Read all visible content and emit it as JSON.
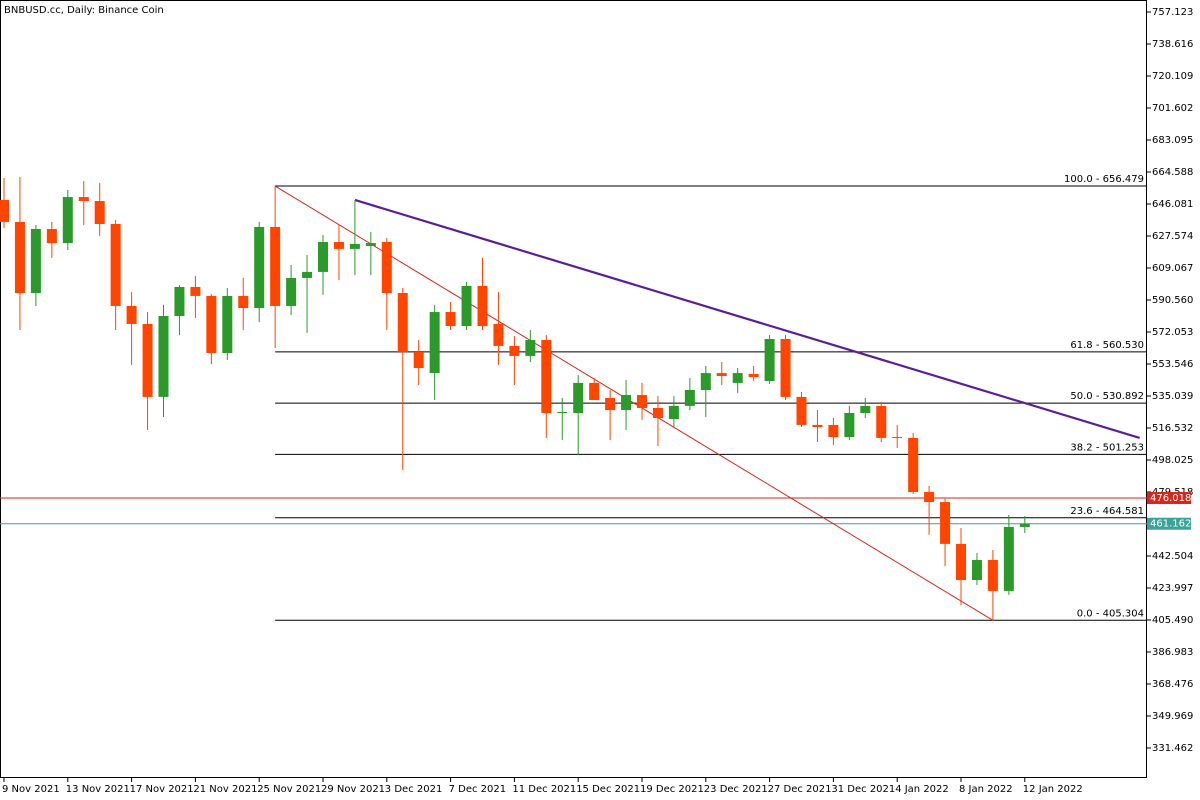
{
  "chart_data": {
    "type": "candlestick",
    "title": "BNBUSD.cc, Daily:  Binance Coin",
    "categories": [
      "9 Nov 2021",
      null,
      null,
      null,
      "13 Nov 2021",
      null,
      null,
      null,
      "17 Nov 2021",
      null,
      null,
      null,
      "21 Nov 2021",
      null,
      null,
      null,
      "25 Nov 2021",
      null,
      null,
      null,
      "29 Nov 2021",
      null,
      null,
      null,
      "3 Dec 2021",
      null,
      null,
      null,
      "7 Dec 2021",
      null,
      null,
      null,
      "11 Dec 2021",
      null,
      null,
      null,
      "15 Dec 2021",
      null,
      null,
      null,
      "19 Dec 2021",
      null,
      null,
      null,
      "23 Dec 2021",
      null,
      null,
      null,
      "27 Dec 2021",
      null,
      null,
      null,
      "31 Dec 2021",
      null,
      null,
      null,
      "4 Jan 2022",
      null,
      null,
      null,
      "8 Jan 2022",
      null,
      null,
      null,
      "12 Jan 2022"
    ],
    "open": [
      648.4,
      635.7,
      594.6,
      631.6,
      623.5,
      650.1,
      647.8,
      634.5,
      587.1,
      576.7,
      534.5,
      581.3,
      598.1,
      592.9,
      559.9,
      592.9,
      585.9,
      632.8,
      587.1,
      603.3,
      606.8,
      624.1,
      620.1,
      621.8,
      624.1,
      594.6,
      560.5,
      548.3,
      583.6,
      575.5,
      598.7,
      576.7,
      564.0,
      558.2,
      567.4,
      525.2,
      525.2,
      542.6,
      533.9,
      526.9,
      535.6,
      528.1,
      521.7,
      529.3,
      538.5,
      548.3,
      542.6,
      547.8,
      543.7,
      568.0,
      534.5,
      518.3,
      518.3,
      511.3,
      525.2,
      529.3,
      511.3,
      510.8,
      479.5,
      473.7,
      449.5,
      428.6,
      440.2,
      422.3,
      459.3
    ],
    "high": [
      661.1,
      661.7,
      633.9,
      635.7,
      654.2,
      659.4,
      658.2,
      636.8,
      595.2,
      583.6,
      587.7,
      599.2,
      604.4,
      594.0,
      597.5,
      603.3,
      635.7,
      656.479,
      610.8,
      616.6,
      628.2,
      633.9,
      648.4,
      629.9,
      626.4,
      597.5,
      567.4,
      587.7,
      589.4,
      601.0,
      614.9,
      595.2,
      569.7,
      573.2,
      570.3,
      533.9,
      547.2,
      545.5,
      538.5,
      544.3,
      542.6,
      535.0,
      535.0,
      545.5,
      552.4,
      554.7,
      551.2,
      552.4,
      570.3,
      570.3,
      537.4,
      526.9,
      522.3,
      529.3,
      533.9,
      531.6,
      518.3,
      513.6,
      483.0,
      476.1,
      458.7,
      444.2,
      446.0,
      466.2,
      465.6
    ],
    "low": [
      632.2,
      573.2,
      587.1,
      614.9,
      619.5,
      633.9,
      627.6,
      573.2,
      553.0,
      515.4,
      522.9,
      570.3,
      580.2,
      553.5,
      555.9,
      573.2,
      577.8,
      562.8,
      581.9,
      571.5,
      593.5,
      602.1,
      605.0,
      605.0,
      573.2,
      492.2,
      541.4,
      532.7,
      573.2,
      573.2,
      573.2,
      553.0,
      541.4,
      554.7,
      510.8,
      509.6,
      500.9,
      532.7,
      509.6,
      515.4,
      521.2,
      506.1,
      517.1,
      526.9,
      522.9,
      541.4,
      536.8,
      543.7,
      542.0,
      532.7,
      517.1,
      508.4,
      506.7,
      509.6,
      522.3,
      508.4,
      505.0,
      478.4,
      454.7,
      436.6,
      414.2,
      425.7,
      405.304,
      420.0,
      455.8
    ],
    "close": [
      635.7,
      594.6,
      631.6,
      623.5,
      650.1,
      647.8,
      634.5,
      587.1,
      576.7,
      534.5,
      581.3,
      598.1,
      592.9,
      559.9,
      592.9,
      585.9,
      632.8,
      587.1,
      603.3,
      606.8,
      624.1,
      620.1,
      623.0,
      623.5,
      594.6,
      560.5,
      551.2,
      583.6,
      575.5,
      598.7,
      575.5,
      564.0,
      558.2,
      567.4,
      525.2,
      525.8,
      542.6,
      532.7,
      526.9,
      535.6,
      528.1,
      522.3,
      529.3,
      538.5,
      548.3,
      546.6,
      548.3,
      546.0,
      568.0,
      534.5,
      518.3,
      517.1,
      511.3,
      525.2,
      529.3,
      510.8,
      510.8,
      479.5,
      473.7,
      449.5,
      428.6,
      440.2,
      422.3,
      459.3,
      461.162
    ],
    "up_color": "#2b9a2b",
    "down_color": "#ff4500",
    "ylim": [
      314.1,
      764.06
    ],
    "yticks": [
      757.123,
      738.616,
      720.109,
      701.602,
      683.095,
      664.588,
      646.081,
      627.574,
      609.067,
      {
        "value": 590.56,
        "label": "590.560"
      },
      572.053,
      553.546,
      535.039,
      516.532,
      498.025,
      479.518,
      442.504,
      423.997,
      {
        "value": 405.49,
        "label": "405.490"
      },
      386.983,
      368.476,
      349.969,
      331.462
    ],
    "fib_levels": [
      {
        "value": 656.479,
        "label": "100.0 - 656.479"
      },
      {
        "value": 560.53,
        "label": "61.8 - 560.530"
      },
      {
        "value": 530.892,
        "label": "50.0 - 530.892"
      },
      {
        "value": 501.253,
        "label": "38.2 - 501.253"
      },
      {
        "value": 464.581,
        "label": "23.6 - 464.581"
      },
      {
        "value": 405.304,
        "label": "0.0 - 405.304"
      }
    ],
    "price_lines": [
      {
        "value": 476.018,
        "color": "#d9261c"
      },
      {
        "value": 461.162,
        "color": "#3aa39a"
      }
    ],
    "trendlines": [
      {
        "color": "#d9261c",
        "from": [
          17,
          656.479
        ],
        "to": [
          62,
          405.304
        ]
      },
      {
        "color": "#5b1f9a",
        "from": [
          22,
          648.4
        ],
        "to": [
          71.2,
          510.8
        ]
      }
    ]
  }
}
